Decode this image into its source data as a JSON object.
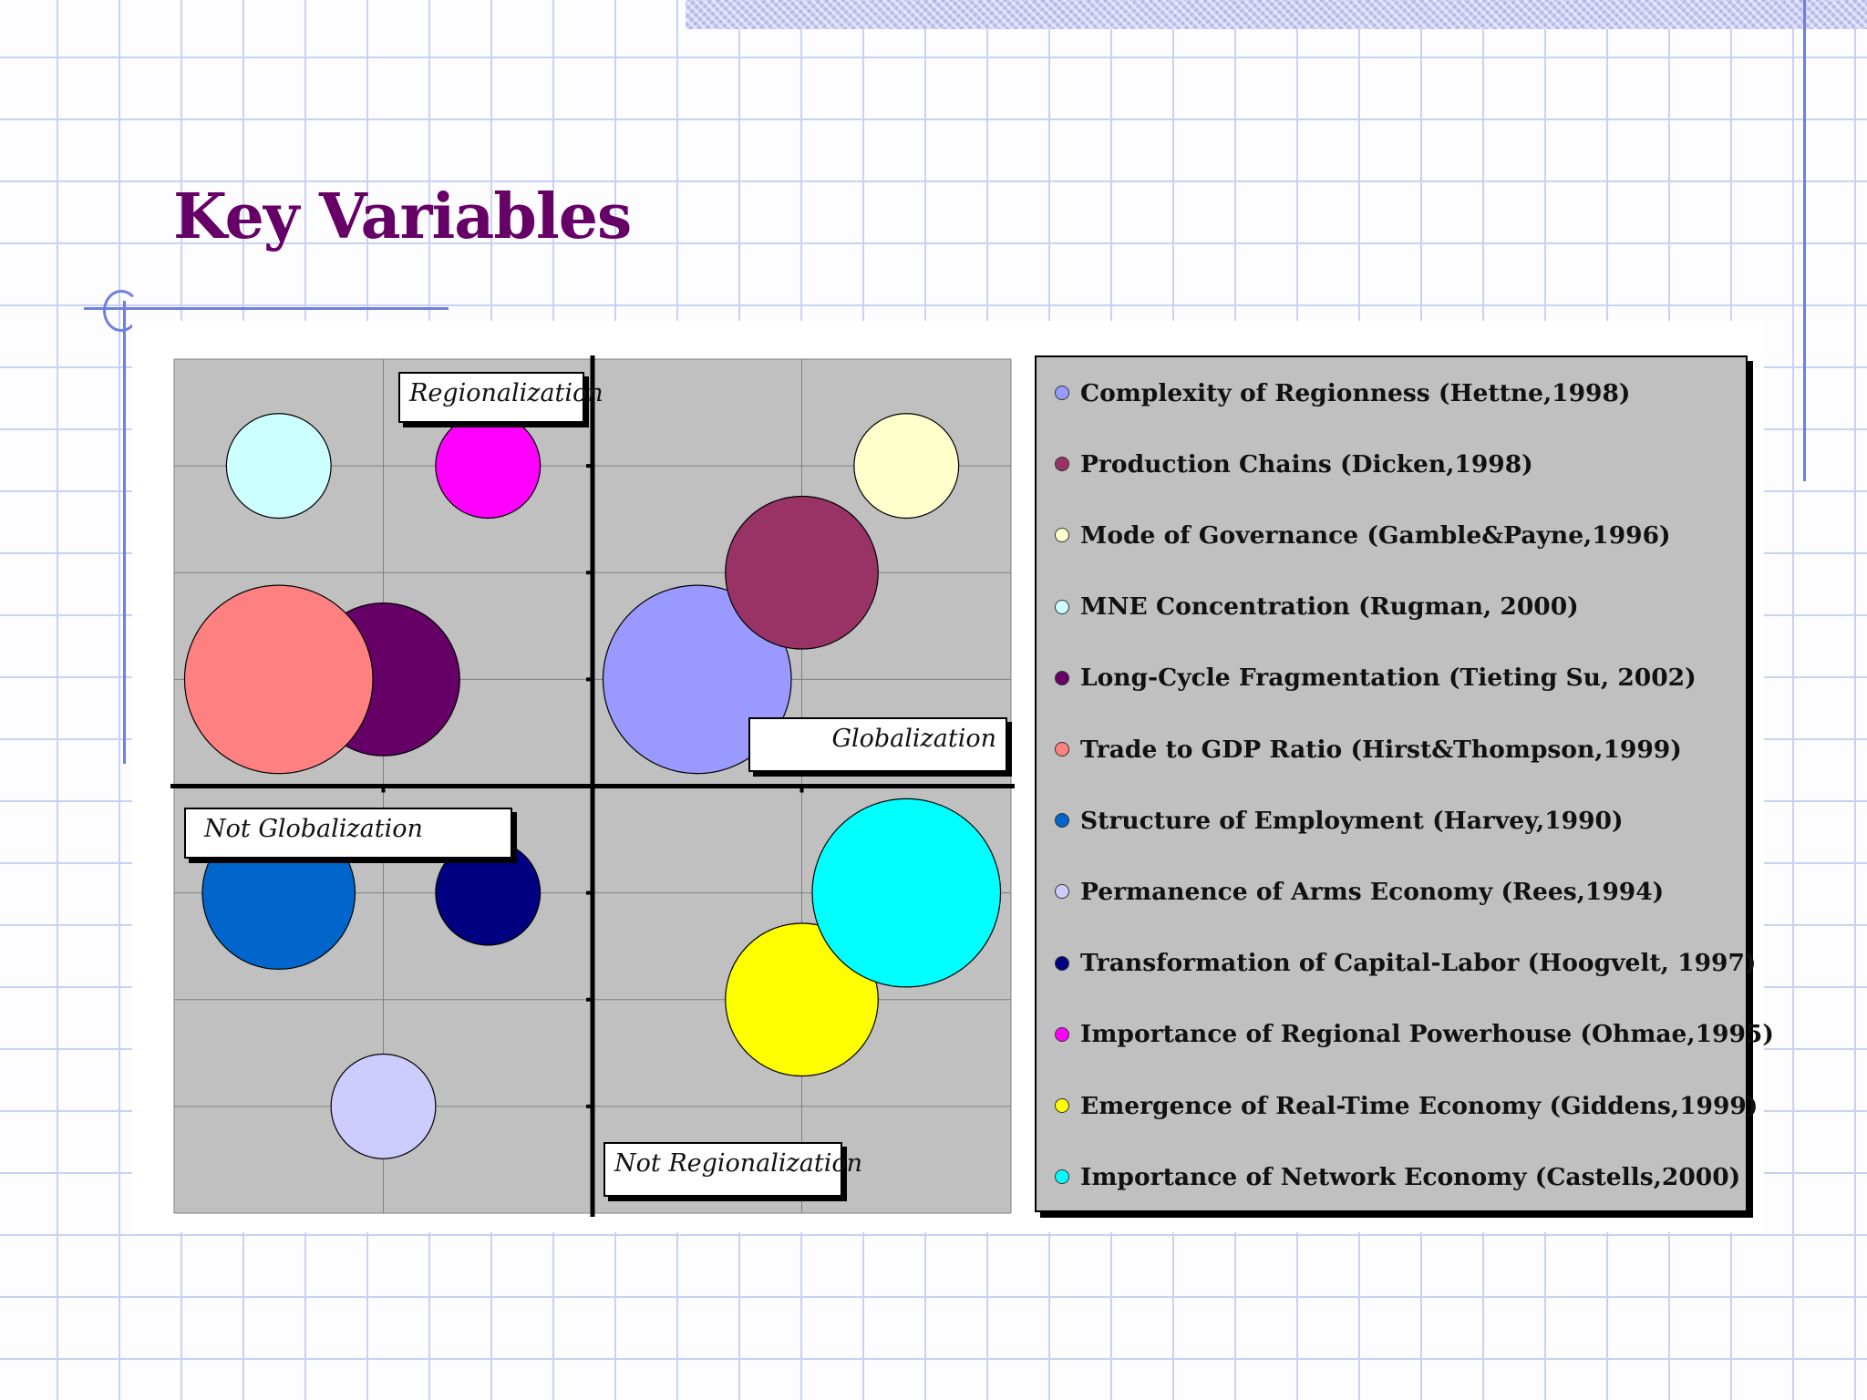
{
  "page": {
    "title": "Key Variables"
  },
  "chart_data": {
    "type": "bubble",
    "quadrant_labels": {
      "top": "Regionalization",
      "bottom": "Not Regionalization",
      "right": "Globalization",
      "left": "Not Globalization"
    },
    "xlim": [
      -4,
      4
    ],
    "ylim": [
      -4,
      4
    ],
    "grid": true,
    "legend_position": "right",
    "series": [
      {
        "name": "Complexity of Regionness (Hettne,1998)",
        "color": "#9999ff",
        "x": 1,
        "y": 1,
        "size": 0.9
      },
      {
        "name": "Production Chains (Dicken,1998)",
        "color": "#993366",
        "x": 2,
        "y": 2,
        "size": 0.73
      },
      {
        "name": "Mode of Governance (Gamble&Payne,1996)",
        "color": "#ffffcc",
        "x": 3,
        "y": 3,
        "size": 0.5
      },
      {
        "name": "MNE Concentration (Rugman, 2000)",
        "color": "#ccffff",
        "x": -3,
        "y": 3,
        "size": 0.5
      },
      {
        "name": "Long-Cycle Fragmentation (Tieting Su, 2002)",
        "color": "#660066",
        "x": -2,
        "y": 1,
        "size": 0.73
      },
      {
        "name": "Trade to GDP Ratio (Hirst&Thompson,1999)",
        "color": "#ff8080",
        "x": -3,
        "y": 1,
        "size": 0.9
      },
      {
        "name": "Structure of Employment (Harvey,1990)",
        "color": "#0066cc",
        "x": -3,
        "y": -1,
        "size": 0.73
      },
      {
        "name": "Permanence of Arms Economy (Rees,1994)",
        "color": "#ccccff",
        "x": -2,
        "y": -3,
        "size": 0.5
      },
      {
        "name": "Transformation of Capital-Labor (Hoogvelt, 1997)",
        "color": "#000080",
        "x": -1,
        "y": -1,
        "size": 0.5
      },
      {
        "name": "Importance of Regional Powerhouse (Ohmae,1995)",
        "color": "#ff00ff",
        "x": -1,
        "y": 3,
        "size": 0.5
      },
      {
        "name": "Emergence of Real-Time Economy (Giddens,1999)",
        "color": "#ffff00",
        "x": 2,
        "y": -2,
        "size": 0.73
      },
      {
        "name": "Importance of Network Economy (Castells,2000)",
        "color": "#00ffff",
        "x": 3,
        "y": -1,
        "size": 0.9
      }
    ]
  }
}
